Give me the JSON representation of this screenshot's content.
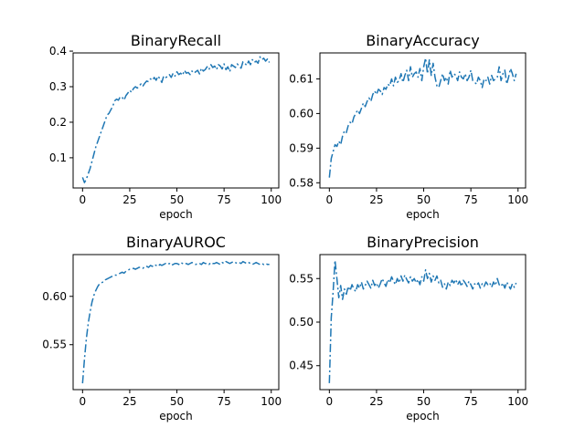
{
  "chart_data": [
    {
      "type": "line",
      "title": "BinaryRecall",
      "xlabel": "epoch",
      "ylabel": "",
      "xlim": [
        -5,
        104
      ],
      "ylim": [
        0.015,
        0.395
      ],
      "xticks": [
        0,
        25,
        50,
        75,
        100
      ],
      "yticks": [
        0.1,
        0.2,
        0.3,
        0.4
      ],
      "ytick_labels": [
        "0.1",
        "0.2",
        "0.3",
        "0.4"
      ],
      "series": [
        {
          "color": "#1f77b4",
          "line_style": "dashdot",
          "x": [
            0,
            1,
            2,
            3,
            4,
            5,
            6,
            7,
            8,
            9,
            10,
            11,
            12,
            13,
            14,
            15,
            16,
            17,
            18,
            19,
            20,
            21,
            22,
            23,
            24,
            25,
            26,
            27,
            28,
            29,
            30,
            31,
            32,
            33,
            34,
            35,
            36,
            37,
            38,
            39,
            40,
            41,
            42,
            43,
            44,
            45,
            46,
            47,
            48,
            49,
            50,
            51,
            52,
            53,
            54,
            55,
            56,
            57,
            58,
            59,
            60,
            61,
            62,
            63,
            64,
            65,
            66,
            67,
            68,
            69,
            70,
            71,
            72,
            73,
            74,
            75,
            76,
            77,
            78,
            79,
            80,
            81,
            82,
            83,
            84,
            85,
            86,
            87,
            88,
            89,
            90,
            91,
            92,
            93,
            94,
            95,
            96,
            97,
            98,
            99
          ],
          "y": [
            0.045,
            0.03,
            0.04,
            0.055,
            0.07,
            0.09,
            0.11,
            0.13,
            0.145,
            0.16,
            0.175,
            0.19,
            0.205,
            0.22,
            0.225,
            0.235,
            0.245,
            0.26,
            0.265,
            0.262,
            0.272,
            0.27,
            0.262,
            0.275,
            0.282,
            0.29,
            0.284,
            0.295,
            0.3,
            0.296,
            0.302,
            0.308,
            0.302,
            0.31,
            0.316,
            0.314,
            0.322,
            0.318,
            0.326,
            0.318,
            0.33,
            0.322,
            0.312,
            0.33,
            0.326,
            0.328,
            0.334,
            0.326,
            0.338,
            0.33,
            0.342,
            0.334,
            0.338,
            0.332,
            0.346,
            0.338,
            0.34,
            0.334,
            0.344,
            0.338,
            0.342,
            0.346,
            0.336,
            0.352,
            0.344,
            0.348,
            0.356,
            0.348,
            0.362,
            0.354,
            0.358,
            0.348,
            0.362,
            0.358,
            0.35,
            0.364,
            0.348,
            0.356,
            0.342,
            0.362,
            0.358,
            0.354,
            0.364,
            0.358,
            0.352,
            0.37,
            0.366,
            0.36,
            0.372,
            0.362,
            0.376,
            0.368,
            0.372,
            0.366,
            0.384,
            0.376,
            0.38,
            0.372,
            0.378,
            0.368
          ]
        }
      ]
    },
    {
      "type": "line",
      "title": "BinaryAccuracy",
      "xlabel": "epoch",
      "ylabel": "",
      "xlim": [
        -5,
        104
      ],
      "ylim": [
        0.5785,
        0.6175
      ],
      "xticks": [
        0,
        25,
        50,
        75,
        100
      ],
      "yticks": [
        0.58,
        0.59,
        0.6,
        0.61
      ],
      "ytick_labels": [
        "0.58",
        "0.59",
        "0.60",
        "0.61"
      ],
      "series": [
        {
          "color": "#1f77b4",
          "line_style": "dashdot",
          "x": [
            0,
            1,
            2,
            3,
            4,
            5,
            6,
            7,
            8,
            9,
            10,
            11,
            12,
            13,
            14,
            15,
            16,
            17,
            18,
            19,
            20,
            21,
            22,
            23,
            24,
            25,
            26,
            27,
            28,
            29,
            30,
            31,
            32,
            33,
            34,
            35,
            36,
            37,
            38,
            39,
            40,
            41,
            42,
            43,
            44,
            45,
            46,
            47,
            48,
            49,
            50,
            51,
            52,
            53,
            54,
            55,
            56,
            57,
            58,
            59,
            60,
            61,
            62,
            63,
            64,
            65,
            66,
            67,
            68,
            69,
            70,
            71,
            72,
            73,
            74,
            75,
            76,
            77,
            78,
            79,
            80,
            81,
            82,
            83,
            84,
            85,
            86,
            87,
            88,
            89,
            90,
            91,
            92,
            93,
            94,
            95,
            96,
            97,
            98,
            99
          ],
          "y": [
            0.5815,
            0.587,
            0.589,
            0.591,
            0.5905,
            0.592,
            0.591,
            0.5935,
            0.595,
            0.5945,
            0.5965,
            0.5975,
            0.597,
            0.599,
            0.6,
            0.601,
            0.6,
            0.6015,
            0.603,
            0.602,
            0.6035,
            0.6045,
            0.6035,
            0.6055,
            0.6065,
            0.6055,
            0.607,
            0.6065,
            0.6055,
            0.6075,
            0.607,
            0.6085,
            0.608,
            0.61,
            0.608,
            0.6105,
            0.609,
            0.6095,
            0.6115,
            0.609,
            0.611,
            0.6125,
            0.6095,
            0.6135,
            0.6105,
            0.6115,
            0.612,
            0.6105,
            0.613,
            0.6095,
            0.6135,
            0.616,
            0.6115,
            0.6155,
            0.611,
            0.6145,
            0.6105,
            0.608,
            0.6075,
            0.6095,
            0.6115,
            0.6095,
            0.6105,
            0.6085,
            0.6125,
            0.6105,
            0.6115,
            0.611,
            0.6095,
            0.612,
            0.6105,
            0.61,
            0.6115,
            0.6095,
            0.6105,
            0.6125,
            0.6095,
            0.609,
            0.6085,
            0.6105,
            0.6095,
            0.6075,
            0.61,
            0.6095,
            0.6105,
            0.6085,
            0.611,
            0.6095,
            0.61,
            0.6105,
            0.6135,
            0.6095,
            0.6115,
            0.6125,
            0.6085,
            0.6105,
            0.613,
            0.6115,
            0.6095,
            0.6115
          ]
        }
      ]
    },
    {
      "type": "line",
      "title": "BinaryAUROC",
      "xlabel": "epoch",
      "ylabel": "",
      "xlim": [
        -5,
        104
      ],
      "ylim": [
        0.5035,
        0.6432
      ],
      "xticks": [
        0,
        25,
        50,
        75,
        100
      ],
      "yticks": [
        0.55,
        0.6
      ],
      "ytick_labels": [
        "0.55",
        "0.60"
      ],
      "series": [
        {
          "color": "#1f77b4",
          "line_style": "dashdot",
          "x": [
            0,
            1,
            2,
            3,
            4,
            5,
            6,
            7,
            8,
            9,
            10,
            11,
            12,
            13,
            14,
            15,
            16,
            17,
            18,
            19,
            20,
            21,
            22,
            23,
            24,
            25,
            26,
            27,
            28,
            29,
            30,
            31,
            32,
            33,
            34,
            35,
            36,
            37,
            38,
            39,
            40,
            41,
            42,
            43,
            44,
            45,
            46,
            47,
            48,
            49,
            50,
            51,
            52,
            53,
            54,
            55,
            56,
            57,
            58,
            59,
            60,
            61,
            62,
            63,
            64,
            65,
            66,
            67,
            68,
            69,
            70,
            71,
            72,
            73,
            74,
            75,
            76,
            77,
            78,
            79,
            80,
            81,
            82,
            83,
            84,
            85,
            86,
            87,
            88,
            89,
            90,
            91,
            92,
            93,
            94,
            95,
            96,
            97,
            98,
            99
          ],
          "y": [
            0.51,
            0.535,
            0.556,
            0.572,
            0.584,
            0.594,
            0.601,
            0.606,
            0.61,
            0.613,
            0.614,
            0.615,
            0.617,
            0.618,
            0.619,
            0.62,
            0.621,
            0.622,
            0.622,
            0.623,
            0.624,
            0.625,
            0.624,
            0.626,
            0.627,
            0.628,
            0.628,
            0.629,
            0.628,
            0.629,
            0.63,
            0.63,
            0.629,
            0.631,
            0.631,
            0.63,
            0.632,
            0.631,
            0.633,
            0.632,
            0.631,
            0.633,
            0.632,
            0.633,
            0.634,
            0.633,
            0.634,
            0.632,
            0.633,
            0.634,
            0.634,
            0.633,
            0.635,
            0.634,
            0.633,
            0.634,
            0.633,
            0.634,
            0.635,
            0.634,
            0.633,
            0.634,
            0.634,
            0.633,
            0.635,
            0.634,
            0.634,
            0.633,
            0.635,
            0.634,
            0.634,
            0.635,
            0.634,
            0.633,
            0.635,
            0.634,
            0.636,
            0.635,
            0.634,
            0.635,
            0.636,
            0.635,
            0.634,
            0.635,
            0.634,
            0.636,
            0.635,
            0.634,
            0.635,
            0.634,
            0.633,
            0.634,
            0.635,
            0.634,
            0.633,
            0.634,
            0.633,
            0.634,
            0.633,
            0.633
          ]
        }
      ]
    },
    {
      "type": "line",
      "title": "BinaryPrecision",
      "xlabel": "epoch",
      "ylabel": "",
      "xlim": [
        -5,
        104
      ],
      "ylim": [
        0.4225,
        0.5775
      ],
      "xticks": [
        0,
        25,
        50,
        75,
        100
      ],
      "yticks": [
        0.45,
        0.5,
        0.55
      ],
      "ytick_labels": [
        "0.45",
        "0.50",
        "0.55"
      ],
      "series": [
        {
          "color": "#1f77b4",
          "line_style": "dashdot",
          "x": [
            0,
            1,
            2,
            3,
            4,
            5,
            6,
            7,
            8,
            9,
            10,
            11,
            12,
            13,
            14,
            15,
            16,
            17,
            18,
            19,
            20,
            21,
            22,
            23,
            24,
            25,
            26,
            27,
            28,
            29,
            30,
            31,
            32,
            33,
            34,
            35,
            36,
            37,
            38,
            39,
            40,
            41,
            42,
            43,
            44,
            45,
            46,
            47,
            48,
            49,
            50,
            51,
            52,
            53,
            54,
            55,
            56,
            57,
            58,
            59,
            60,
            61,
            62,
            63,
            64,
            65,
            66,
            67,
            68,
            69,
            70,
            71,
            72,
            73,
            74,
            75,
            76,
            77,
            78,
            79,
            80,
            81,
            82,
            83,
            84,
            85,
            86,
            87,
            88,
            89,
            90,
            91,
            92,
            93,
            94,
            95,
            96,
            97,
            98,
            99
          ],
          "y": [
            0.43,
            0.505,
            0.535,
            0.571,
            0.55,
            0.528,
            0.542,
            0.526,
            0.538,
            0.532,
            0.541,
            0.536,
            0.543,
            0.538,
            0.535,
            0.543,
            0.539,
            0.546,
            0.538,
            0.542,
            0.547,
            0.543,
            0.539,
            0.548,
            0.542,
            0.545,
            0.539,
            0.544,
            0.55,
            0.545,
            0.541,
            0.549,
            0.545,
            0.552,
            0.547,
            0.543,
            0.55,
            0.545,
            0.553,
            0.547,
            0.554,
            0.549,
            0.545,
            0.552,
            0.547,
            0.55,
            0.545,
            0.549,
            0.543,
            0.552,
            0.547,
            0.56,
            0.55,
            0.556,
            0.546,
            0.553,
            0.548,
            0.553,
            0.545,
            0.548,
            0.54,
            0.544,
            0.538,
            0.546,
            0.542,
            0.548,
            0.545,
            0.549,
            0.543,
            0.547,
            0.541,
            0.548,
            0.545,
            0.541,
            0.547,
            0.543,
            0.538,
            0.544,
            0.542,
            0.545,
            0.539,
            0.544,
            0.541,
            0.546,
            0.543,
            0.545,
            0.54,
            0.546,
            0.542,
            0.55,
            0.543,
            0.541,
            0.545,
            0.539,
            0.546,
            0.542,
            0.538,
            0.544,
            0.54,
            0.545
          ]
        }
      ]
    }
  ]
}
